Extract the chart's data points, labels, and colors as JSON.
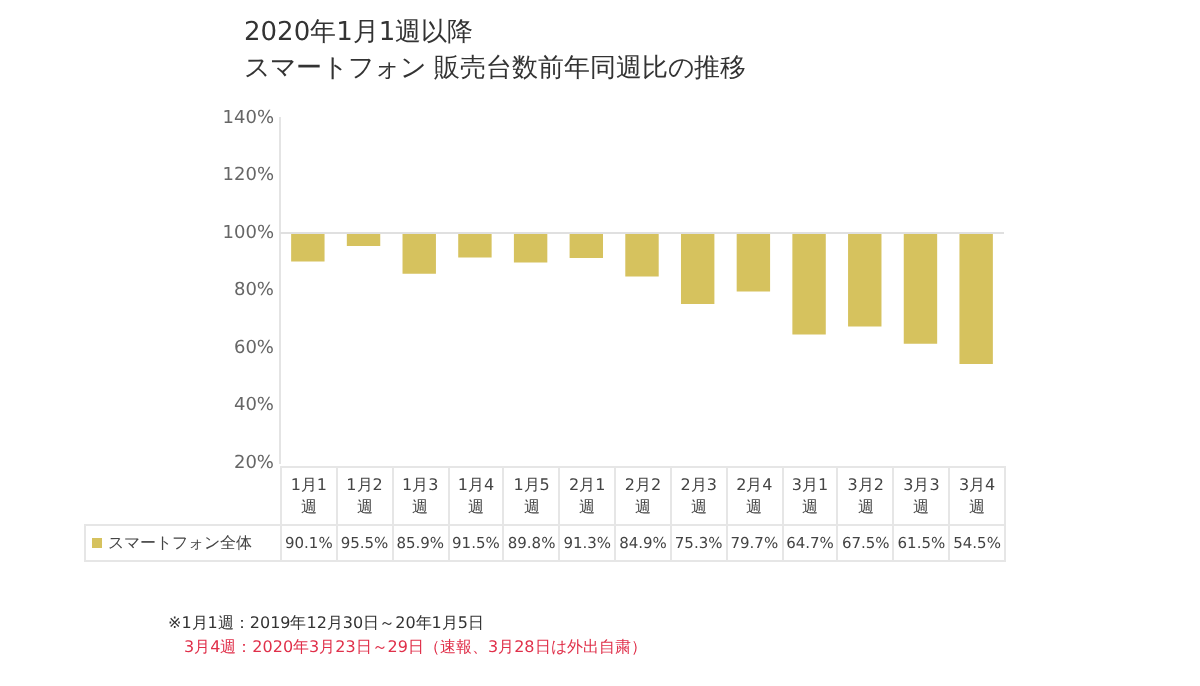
{
  "chart_data": {
    "type": "bar",
    "title": "2020年1月1週以降",
    "subtitle": "スマートフォン 販売台数前年同週比の推移",
    "categories": [
      "1月1週",
      "1月2週",
      "1月3週",
      "1月4週",
      "1月5週",
      "2月1週",
      "2月2週",
      "2月3週",
      "2月4週",
      "3月1週",
      "3月2週",
      "3月3週",
      "3月4週"
    ],
    "series": [
      {
        "name": "スマートフォン全体",
        "color": "#d6c25e",
        "values": [
          -9.9,
          -4.5,
          -14.1,
          -8.5,
          -10.2,
          -8.7,
          -15.1,
          -24.7,
          -20.3,
          -35.3,
          -32.5,
          -38.5,
          -45.5
        ],
        "base": [
          100,
          100,
          100,
          100,
          100,
          100,
          100,
          100,
          100,
          100,
          100,
          100,
          100
        ],
        "value_labels": [
          "90.1%",
          "95.5%",
          "85.9%",
          "91.5%",
          "89.8%",
          "91.3%",
          "84.9%",
          "75.3%",
          "79.7%",
          "64.7%",
          "67.5%",
          "61.5%",
          "54.5%"
        ]
      }
    ],
    "ylim": [
      20,
      140
    ],
    "yticks": [
      {
        "value": 20,
        "label": "20%"
      },
      {
        "value": 40,
        "label": "40%"
      },
      {
        "value": 60,
        "label": "60%"
      },
      {
        "value": 80,
        "label": "80%"
      },
      {
        "value": 100,
        "label": "100%"
      },
      {
        "value": 120,
        "label": "120%"
      },
      {
        "value": 140,
        "label": "140%"
      }
    ],
    "ref_lines": [
      {
        "axis": "y",
        "value": 100,
        "color": "#e0e0e0"
      }
    ],
    "grid": false,
    "legend": "bottom",
    "annotations": [
      "※1月1週：2019年12月30日～20年1月5日",
      "3月4週：2020年3月23日～29日（速報、3月28日は外出自粛）"
    ]
  }
}
